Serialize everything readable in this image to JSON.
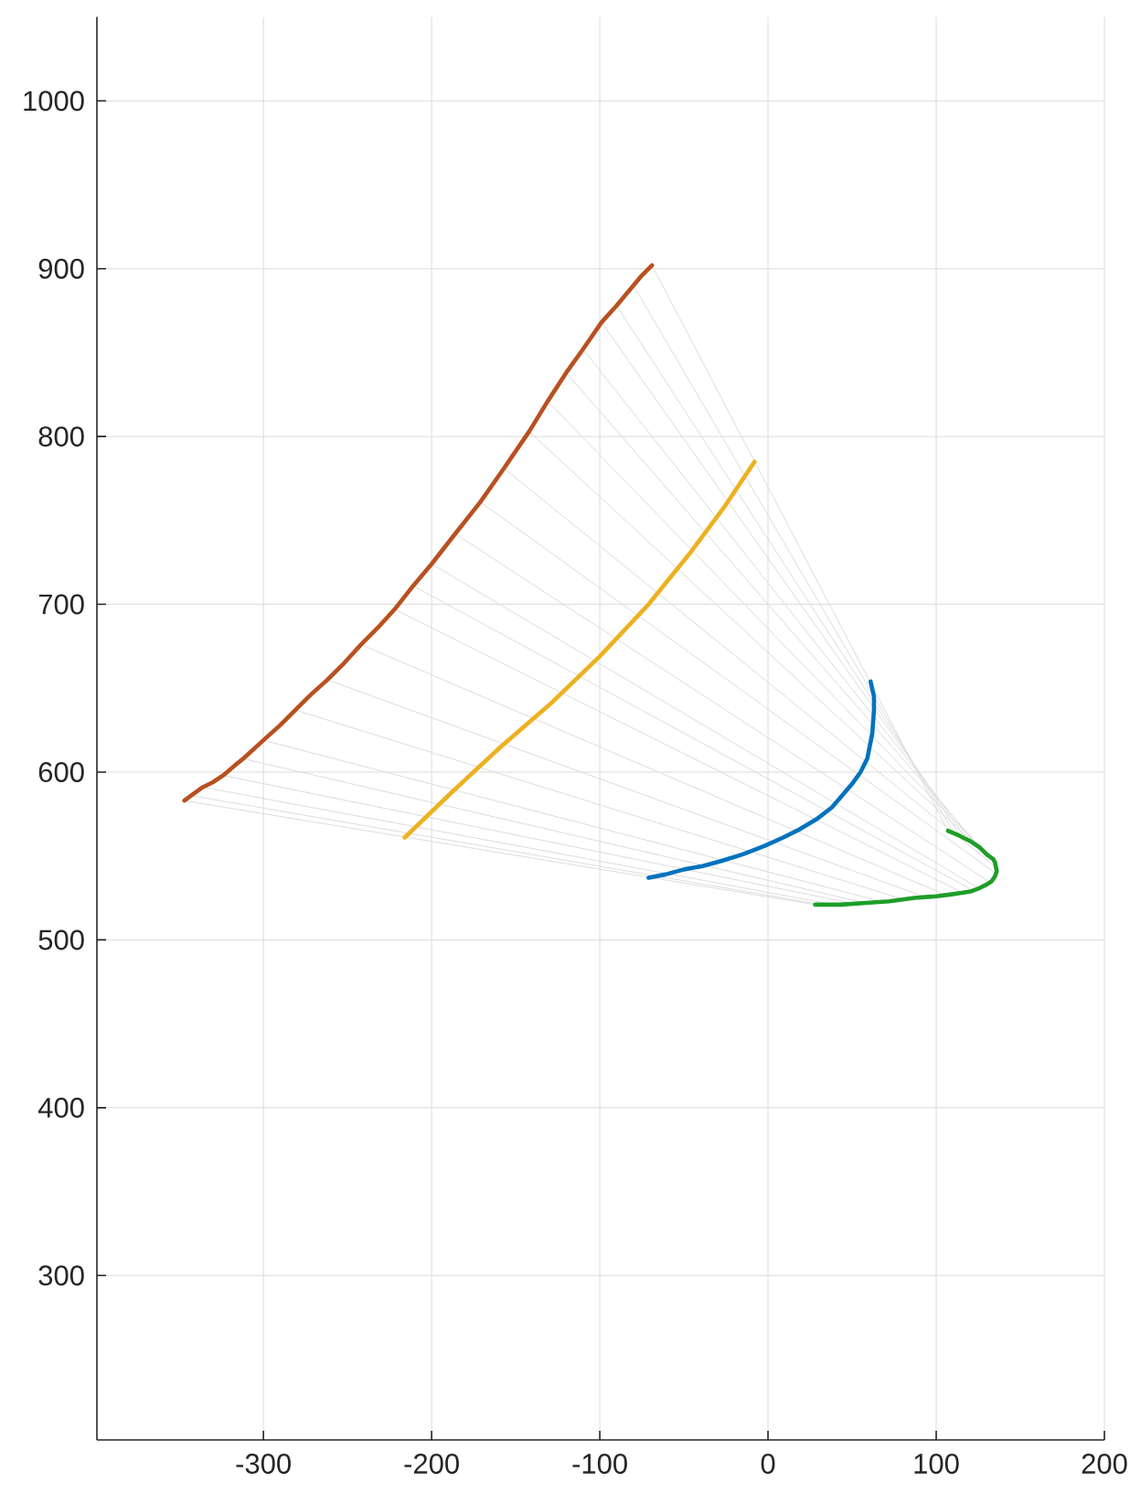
{
  "chart_data": {
    "type": "line",
    "xlim": [
      -399,
      200
    ],
    "ylim": [
      202,
      1050
    ],
    "xticks": [
      -300,
      -200,
      -100,
      0,
      100,
      200
    ],
    "yticks": [
      300,
      400,
      500,
      600,
      700,
      800,
      900,
      1000
    ],
    "grid": true,
    "series": [
      {
        "color": "#dcdcdc",
        "x": [
          -347,
          28
        ],
        "values": [
          583,
          521
        ]
      },
      {
        "color": "#dcdcdc",
        "x": [
          -343,
          32
        ],
        "values": [
          586,
          521
        ]
      },
      {
        "color": "#dcdcdc",
        "x": [
          -336,
          39
        ],
        "values": [
          591,
          521
        ]
      },
      {
        "color": "#dcdcdc",
        "x": [
          -324,
          49
        ],
        "values": [
          598,
          522
        ]
      },
      {
        "color": "#dcdcdc",
        "x": [
          -312,
          58
        ],
        "values": [
          608,
          522
        ]
      },
      {
        "color": "#dcdcdc",
        "x": [
          -300,
          67
        ],
        "values": [
          619,
          523
        ]
      },
      {
        "color": "#dcdcdc",
        "x": [
          -281,
          81
        ],
        "values": [
          637,
          524
        ]
      },
      {
        "color": "#dcdcdc",
        "x": [
          -262,
          95
        ],
        "values": [
          655,
          525
        ]
      },
      {
        "color": "#dcdcdc",
        "x": [
          -242,
          105
        ],
        "values": [
          676,
          527
        ]
      },
      {
        "color": "#dcdcdc",
        "x": [
          -222,
          116
        ],
        "values": [
          697,
          528
        ]
      },
      {
        "color": "#dcdcdc",
        "x": [
          -211,
          121
        ],
        "values": [
          711,
          530
        ]
      },
      {
        "color": "#dcdcdc",
        "x": [
          -200,
          125
        ],
        "values": [
          724,
          531
        ]
      },
      {
        "color": "#dcdcdc",
        "x": [
          -186,
          131
        ],
        "values": [
          742,
          535
        ]
      },
      {
        "color": "#dcdcdc",
        "x": [
          -171,
          135
        ],
        "values": [
          761,
          540
        ]
      },
      {
        "color": "#dcdcdc",
        "x": [
          -157,
          136
        ],
        "values": [
          781,
          543
        ]
      },
      {
        "color": "#dcdcdc",
        "x": [
          -142,
          134
        ],
        "values": [
          803,
          547
        ]
      },
      {
        "color": "#dcdcdc",
        "x": [
          -131,
          131
        ],
        "values": [
          821,
          550
        ]
      },
      {
        "color": "#dcdcdc",
        "x": [
          -120,
          127
        ],
        "values": [
          838,
          554
        ]
      },
      {
        "color": "#dcdcdc",
        "x": [
          -110,
          123
        ],
        "values": [
          852,
          557
        ]
      },
      {
        "color": "#dcdcdc",
        "x": [
          -99,
          118
        ],
        "values": [
          868,
          560
        ]
      },
      {
        "color": "#dcdcdc",
        "x": [
          -90,
          115
        ],
        "values": [
          878,
          561
        ]
      },
      {
        "color": "#dcdcdc",
        "x": [
          -80,
          111
        ],
        "values": [
          890,
          563
        ]
      },
      {
        "color": "#dcdcdc",
        "x": [
          -69,
          107
        ],
        "values": [
          902,
          565
        ]
      },
      {
        "color": "#b9501f",
        "x": [
          -347,
          -343,
          -336,
          -330,
          -324,
          -317,
          -312,
          -300,
          -290,
          -281,
          -272,
          -262,
          -252,
          -242,
          -232,
          -222,
          -211,
          -200,
          -186,
          -171,
          -157,
          -142,
          -131,
          -120,
          -110,
          -99,
          -90,
          -80,
          -75,
          -69
        ],
        "values": [
          583,
          586,
          591,
          594,
          598,
          604,
          608,
          619,
          628,
          637,
          646,
          655,
          665,
          676,
          686,
          697,
          711,
          724,
          742,
          761,
          781,
          803,
          821,
          838,
          852,
          868,
          878,
          890,
          896,
          902
        ]
      },
      {
        "color": "#edb120",
        "x": [
          -216,
          -188,
          -159,
          -129,
          -100,
          -71,
          -46,
          -26,
          -8
        ],
        "values": [
          561,
          588,
          615,
          641,
          669,
          700,
          731,
          758,
          785
        ]
      },
      {
        "color": "#0072bd",
        "x": [
          61,
          63,
          63,
          62,
          59,
          55,
          50,
          44,
          38,
          29,
          19,
          9,
          -2,
          -15,
          -28,
          -39,
          -50,
          -61,
          -71
        ],
        "values": [
          654,
          645,
          637,
          623,
          608,
          600,
          593,
          586,
          579,
          572,
          566,
          561,
          556,
          551,
          547,
          544,
          542,
          539,
          537
        ]
      },
      {
        "color": "#1e9e28",
        "x": [
          107,
          114,
          120,
          126,
          130,
          134,
          135,
          136,
          135,
          133,
          130,
          126,
          121,
          115,
          108,
          100,
          87,
          72,
          58,
          43,
          28
        ],
        "values": [
          565,
          562,
          559,
          555,
          551,
          548,
          546,
          541,
          538,
          535,
          533,
          531,
          529,
          528,
          527,
          526,
          525,
          523,
          522,
          521,
          521
        ]
      }
    ]
  }
}
